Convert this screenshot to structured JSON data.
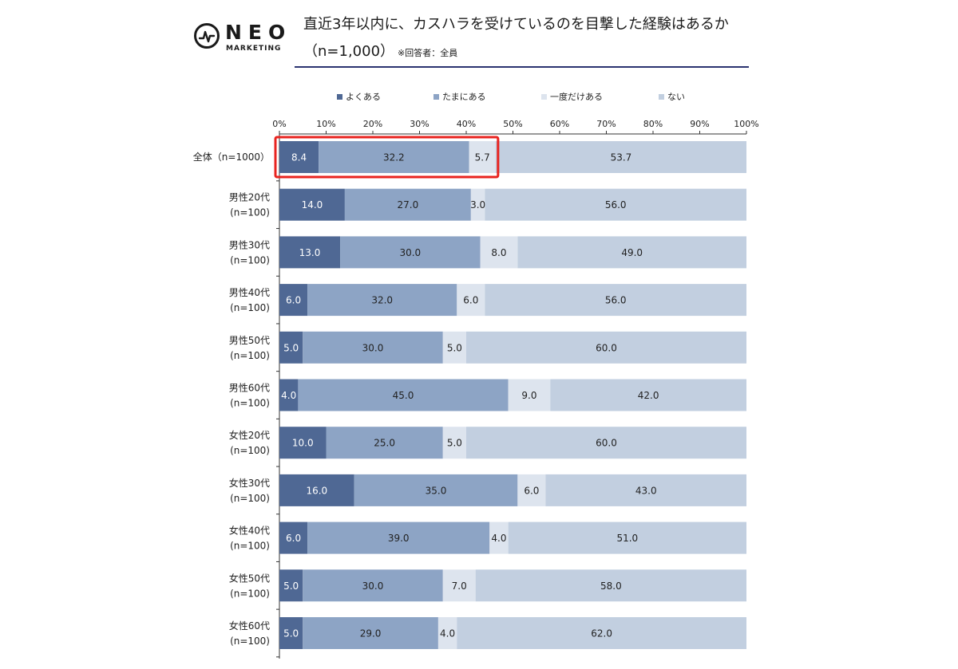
{
  "logo": {
    "word": "NEO",
    "sub": "MARKETING"
  },
  "title": {
    "line1": "直近3年以内に、カスハラを受けているのを目撃した経験はあるか",
    "line2": "（n=1,000）",
    "note": "※回答者：全員"
  },
  "colors": {
    "often": "#4f6894",
    "sometimes": "#8da4c5",
    "once": "#dde4ee",
    "never": "#c2cfe0",
    "highlight": "#e8231f",
    "axis": "#333333"
  },
  "chart_data": {
    "type": "bar",
    "orientation": "horizontal",
    "stacked": true,
    "xlim": [
      0,
      100
    ],
    "x_ticks": [
      "0%",
      "10%",
      "20%",
      "30%",
      "40%",
      "50%",
      "60%",
      "70%",
      "80%",
      "90%",
      "100%"
    ],
    "legend_position": "top",
    "categories": [
      [
        "全体（n=1000）"
      ],
      [
        "男性20代",
        "(n=100)"
      ],
      [
        "男性30代",
        "(n=100)"
      ],
      [
        "男性40代",
        "(n=100)"
      ],
      [
        "男性50代",
        "(n=100)"
      ],
      [
        "男性60代",
        "(n=100)"
      ],
      [
        "女性20代",
        "(n=100)"
      ],
      [
        "女性30代",
        "(n=100)"
      ],
      [
        "女性40代",
        "(n=100)"
      ],
      [
        "女性50代",
        "(n=100)"
      ],
      [
        "女性60代",
        "(n=100)"
      ]
    ],
    "series": [
      {
        "name": "よくある",
        "color": "#4f6894",
        "label_color": "#ffffff",
        "values": [
          8.4,
          14.0,
          13.0,
          6.0,
          5.0,
          4.0,
          10.0,
          16.0,
          6.0,
          5.0,
          5.0
        ],
        "labels": [
          "8.4",
          "14.0",
          "13.0",
          "6.0",
          "5.0",
          "4.0",
          "10.0",
          "16.0",
          "6.0",
          "5.0",
          "5.0"
        ]
      },
      {
        "name": "たまにある",
        "color": "#8da4c5",
        "label_color": "#222222",
        "values": [
          32.2,
          27.0,
          30.0,
          32.0,
          30.0,
          45.0,
          25.0,
          35.0,
          39.0,
          30.0,
          29.0
        ],
        "labels": [
          "32.2",
          "27.0",
          "30.0",
          "32.0",
          "30.0",
          "45.0",
          "25.0",
          "35.0",
          "39.0",
          "30.0",
          "29.0"
        ]
      },
      {
        "name": "一度だけある",
        "color": "#dde4ee",
        "label_color": "#222222",
        "values": [
          5.7,
          3.0,
          8.0,
          6.0,
          5.0,
          9.0,
          5.0,
          6.0,
          4.0,
          7.0,
          4.0
        ],
        "labels": [
          "5.7",
          "3.0",
          "8.0",
          "6.0",
          "5.0",
          "9.0",
          "5.0",
          "6.0",
          "4.0",
          "7.0",
          "4.0"
        ]
      },
      {
        "name": "ない",
        "color": "#c2cfe0",
        "label_color": "#222222",
        "values": [
          53.7,
          56.0,
          49.0,
          56.0,
          60.0,
          42.0,
          60.0,
          43.0,
          51.0,
          58.0,
          62.0
        ],
        "labels": [
          "53.7",
          "56.0",
          "49.0",
          "56.0",
          "60.0",
          "42.0",
          "60.0",
          "43.0",
          "51.0",
          "58.0",
          "62.0"
        ]
      }
    ],
    "highlight": {
      "row": 0,
      "series_range": [
        0,
        2
      ]
    }
  }
}
